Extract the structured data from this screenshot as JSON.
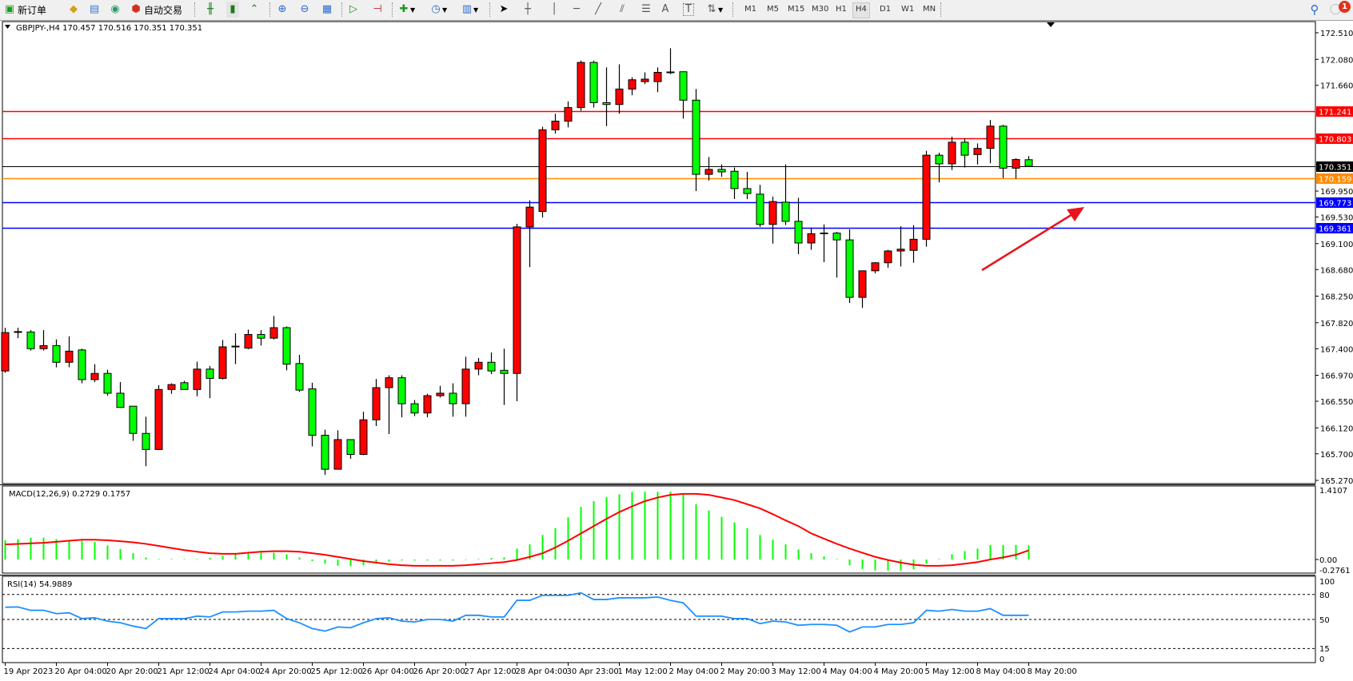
{
  "toolbar": {
    "new_order": "新订单",
    "auto_trading": "自动交易",
    "icons": [
      "new-order-icon",
      "metaeditor-icon",
      "terminal-icon",
      "signals-icon",
      "auto-trading-icon",
      "bar-chart-icon",
      "candlestick-icon",
      "line-chart-icon",
      "zoom-in-icon",
      "zoom-out-icon",
      "tile-windows-icon",
      "auto-scroll-icon",
      "chart-shift-icon",
      "indicators-icon",
      "periods-icon",
      "templates-icon",
      "cursor-icon",
      "crosshair-icon",
      "vertical-line-icon",
      "horizontal-line-icon",
      "trendline-icon",
      "equidistant-channel-icon",
      "fibonacci-icon",
      "text-icon",
      "text-label-icon",
      "arrows-icon",
      "search-icon",
      "notifications-icon"
    ],
    "text_tool": "A",
    "label_tool": "T",
    "timeframes": [
      "M1",
      "M5",
      "M15",
      "M30",
      "H1",
      "H4",
      "D1",
      "W1",
      "MN"
    ],
    "active_timeframe": "H4",
    "notification_count": "1"
  },
  "chart": {
    "header": "GBPJPY-,H4  170.457 170.516 170.351 170.351",
    "bull_color": "#ff0000",
    "bear_color": "#00ff00",
    "price_ticks": [
      "172.510",
      "172.080",
      "171.660",
      "169.950",
      "169.530",
      "169.100",
      "168.680",
      "168.250",
      "167.820",
      "167.400",
      "166.970",
      "166.550",
      "166.120",
      "165.700",
      "165.270"
    ],
    "lines": [
      {
        "price": "171.241",
        "color": "#ff0000"
      },
      {
        "price": "170.803",
        "color": "#ff0000"
      },
      {
        "price": "170.351",
        "color": "#000000"
      },
      {
        "price": "170.159",
        "color": "#ff8c00"
      },
      {
        "price": "169.773",
        "color": "#0000ff"
      },
      {
        "price": "169.361",
        "color": "#0000ff"
      }
    ],
    "arrow_color": "#e8141c",
    "candles": [
      [
        167.04,
        167.74,
        167.01,
        167.66
      ],
      [
        167.66,
        167.74,
        167.57,
        167.68
      ],
      [
        167.67,
        167.7,
        167.37,
        167.4
      ],
      [
        167.4,
        167.7,
        167.37,
        167.45
      ],
      [
        167.45,
        167.55,
        167.1,
        167.18
      ],
      [
        167.18,
        167.6,
        167.1,
        167.36
      ],
      [
        167.38,
        167.4,
        166.84,
        166.9
      ],
      [
        166.9,
        167.15,
        166.86,
        167.0
      ],
      [
        167.0,
        167.06,
        166.64,
        166.68
      ],
      [
        166.68,
        166.86,
        166.44,
        166.45
      ],
      [
        166.47,
        166.47,
        165.91,
        166.03
      ],
      [
        166.03,
        166.3,
        165.5,
        165.77
      ],
      [
        165.77,
        166.81,
        165.76,
        166.74
      ],
      [
        166.74,
        166.84,
        166.67,
        166.82
      ],
      [
        166.85,
        166.88,
        166.74,
        166.74
      ],
      [
        166.74,
        167.19,
        166.63,
        167.07
      ],
      [
        167.07,
        167.12,
        166.6,
        166.92
      ],
      [
        166.92,
        167.54,
        166.9,
        167.43
      ],
      [
        167.43,
        167.65,
        167.15,
        167.44
      ],
      [
        167.41,
        167.71,
        167.39,
        167.63
      ],
      [
        167.63,
        167.7,
        167.45,
        167.57
      ],
      [
        167.57,
        167.93,
        167.55,
        167.74
      ],
      [
        167.74,
        167.76,
        167.05,
        167.15
      ],
      [
        167.16,
        167.3,
        166.7,
        166.73
      ],
      [
        166.75,
        166.85,
        165.82,
        166.0
      ],
      [
        166.0,
        166.09,
        165.36,
        165.45
      ],
      [
        165.45,
        166.08,
        165.45,
        165.93
      ],
      [
        165.93,
        165.93,
        165.62,
        165.69
      ],
      [
        165.69,
        166.38,
        165.68,
        166.25
      ],
      [
        166.25,
        166.91,
        166.15,
        166.77
      ],
      [
        166.77,
        166.97,
        166.02,
        166.93
      ],
      [
        166.93,
        166.97,
        166.29,
        166.51
      ],
      [
        166.51,
        166.57,
        166.31,
        166.36
      ],
      [
        166.36,
        166.67,
        166.29,
        166.64
      ],
      [
        166.64,
        166.8,
        166.61,
        166.68
      ],
      [
        166.68,
        166.84,
        166.3,
        166.51
      ],
      [
        166.51,
        167.27,
        166.3,
        167.07
      ],
      [
        167.07,
        167.25,
        166.97,
        167.18
      ],
      [
        167.18,
        167.34,
        166.99,
        167.04
      ],
      [
        167.05,
        167.4,
        166.49,
        167.0
      ],
      [
        167.0,
        169.42,
        166.55,
        169.37
      ],
      [
        169.37,
        169.8,
        168.72,
        169.69
      ],
      [
        169.62,
        170.99,
        169.52,
        170.94
      ],
      [
        170.94,
        171.2,
        170.88,
        171.08
      ],
      [
        171.08,
        171.4,
        170.98,
        171.3
      ],
      [
        171.3,
        172.06,
        171.25,
        172.03
      ],
      [
        172.03,
        172.06,
        171.3,
        171.38
      ],
      [
        171.38,
        171.95,
        171.0,
        171.35
      ],
      [
        171.35,
        172.0,
        171.2,
        171.6
      ],
      [
        171.6,
        171.79,
        171.5,
        171.75
      ],
      [
        171.72,
        171.87,
        171.68,
        171.76
      ],
      [
        171.72,
        171.95,
        171.55,
        171.87
      ],
      [
        171.86,
        172.26,
        171.84,
        171.88
      ],
      [
        171.88,
        171.88,
        171.12,
        171.42
      ],
      [
        171.42,
        171.6,
        169.95,
        170.22
      ],
      [
        170.22,
        170.5,
        170.12,
        170.3
      ],
      [
        170.3,
        170.38,
        170.18,
        170.26
      ],
      [
        170.27,
        170.33,
        169.82,
        169.99
      ],
      [
        169.99,
        170.26,
        169.82,
        169.91
      ],
      [
        169.9,
        170.05,
        169.37,
        169.41
      ],
      [
        169.41,
        169.86,
        169.1,
        169.78
      ],
      [
        169.77,
        170.38,
        169.4,
        169.46
      ],
      [
        169.46,
        169.84,
        168.93,
        169.11
      ],
      [
        169.11,
        169.36,
        169.0,
        169.26
      ],
      [
        169.26,
        169.41,
        168.8,
        169.27
      ],
      [
        169.27,
        169.29,
        168.55,
        169.16
      ],
      [
        169.16,
        169.33,
        168.14,
        168.23
      ],
      [
        168.23,
        168.66,
        168.06,
        168.66
      ],
      [
        168.66,
        168.8,
        168.62,
        168.79
      ],
      [
        168.79,
        169.0,
        168.71,
        168.98
      ],
      [
        168.98,
        169.38,
        168.73,
        169.01
      ],
      [
        168.99,
        169.4,
        168.79,
        169.17
      ],
      [
        169.17,
        170.6,
        169.05,
        170.53
      ],
      [
        170.53,
        170.57,
        170.09,
        170.39
      ],
      [
        170.39,
        170.83,
        170.29,
        170.74
      ],
      [
        170.74,
        170.8,
        170.33,
        170.53
      ],
      [
        170.54,
        170.72,
        170.38,
        170.64
      ],
      [
        170.64,
        171.1,
        170.4,
        171.0
      ],
      [
        171.0,
        171.02,
        170.16,
        170.32
      ],
      [
        170.32,
        170.48,
        170.15,
        170.46
      ],
      [
        170.457,
        170.516,
        170.351,
        170.351
      ]
    ],
    "time_labels": [
      {
        "label": "19 Apr 2023",
        "bar": 0
      },
      {
        "label": "20 Apr 04:00",
        "bar": 4
      },
      {
        "label": "20 Apr 20:00",
        "bar": 8
      },
      {
        "label": "21 Apr 12:00",
        "bar": 12
      },
      {
        "label": "24 Apr 04:00",
        "bar": 16
      },
      {
        "label": "24 Apr 20:00",
        "bar": 20
      },
      {
        "label": "25 Apr 12:00",
        "bar": 24
      },
      {
        "label": "26 Apr 04:00",
        "bar": 28
      },
      {
        "label": "26 Apr 20:00",
        "bar": 32
      },
      {
        "label": "27 Apr 12:00",
        "bar": 36
      },
      {
        "label": "28 Apr 04:00",
        "bar": 40
      },
      {
        "label": "30 Apr 23:00",
        "bar": 44
      },
      {
        "label": "1 May 12:00",
        "bar": 48
      },
      {
        "label": "2 May 04:00",
        "bar": 52
      },
      {
        "label": "2 May 20:00",
        "bar": 56
      },
      {
        "label": "3 May 12:00",
        "bar": 60
      },
      {
        "label": "4 May 04:00",
        "bar": 64
      },
      {
        "label": "4 May 20:00",
        "bar": 68
      },
      {
        "label": "5 May 12:00",
        "bar": 72
      },
      {
        "label": "8 May 04:00",
        "bar": 76
      },
      {
        "label": "8 May 20:00",
        "bar": 80
      }
    ]
  },
  "macd": {
    "label": "MACD(12,26,9) 0.2729 0.1757",
    "axis_labels": [
      "1.4107",
      "0.00",
      "-0.2761"
    ],
    "hist_color": "#00ff00",
    "signal_color": "#ff0000",
    "histogram": [
      0.37,
      0.39,
      0.42,
      0.42,
      0.39,
      0.37,
      0.36,
      0.34,
      0.27,
      0.2,
      0.12,
      0.04,
      0.01,
      0.01,
      0.01,
      0.01,
      0.03,
      0.07,
      0.1,
      0.12,
      0.13,
      0.13,
      0.1,
      0.04,
      -0.03,
      -0.08,
      -0.12,
      -0.13,
      -0.11,
      -0.07,
      -0.04,
      -0.02,
      -0.02,
      -0.02,
      -0.02,
      -0.02,
      -0.01,
      0.01,
      0.03,
      0.04,
      0.21,
      0.29,
      0.47,
      0.6,
      0.81,
      1.01,
      1.12,
      1.2,
      1.25,
      1.3,
      1.3,
      1.3,
      1.3,
      1.25,
      1.06,
      0.94,
      0.82,
      0.71,
      0.6,
      0.47,
      0.38,
      0.29,
      0.19,
      0.12,
      0.06,
      0.01,
      -0.11,
      -0.18,
      -0.21,
      -0.21,
      -0.21,
      -0.19,
      -0.08,
      0.01,
      0.1,
      0.16,
      0.21,
      0.28,
      0.28,
      0.28,
      0.2729
    ],
    "signal": [
      0.29,
      0.3,
      0.31,
      0.32,
      0.34,
      0.36,
      0.38,
      0.38,
      0.37,
      0.35,
      0.33,
      0.3,
      0.26,
      0.22,
      0.18,
      0.15,
      0.12,
      0.11,
      0.11,
      0.13,
      0.15,
      0.16,
      0.16,
      0.15,
      0.12,
      0.09,
      0.05,
      0.01,
      -0.03,
      -0.06,
      -0.09,
      -0.11,
      -0.12,
      -0.12,
      -0.12,
      -0.12,
      -0.11,
      -0.09,
      -0.07,
      -0.05,
      -0.01,
      0.05,
      0.12,
      0.23,
      0.36,
      0.5,
      0.64,
      0.78,
      0.91,
      1.02,
      1.12,
      1.19,
      1.24,
      1.26,
      1.26,
      1.24,
      1.19,
      1.14,
      1.06,
      0.98,
      0.87,
      0.75,
      0.64,
      0.5,
      0.4,
      0.3,
      0.21,
      0.13,
      0.05,
      -0.01,
      -0.06,
      -0.1,
      -0.12,
      -0.12,
      -0.11,
      -0.08,
      -0.05,
      0.0,
      0.04,
      0.09,
      0.1757
    ]
  },
  "rsi": {
    "label": "RSI(14) 54.9889",
    "axis_labels": [
      "100",
      "80",
      "50",
      "15",
      "0"
    ],
    "levels": [
      80,
      50,
      15
    ],
    "line_color": "#1e90ff",
    "values": [
      64.7,
      65,
      61,
      61,
      57,
      58,
      51,
      52,
      48,
      46,
      42,
      39,
      51,
      51,
      51,
      54,
      53,
      59,
      59,
      60,
      60,
      61,
      51,
      46,
      39,
      36,
      41,
      40,
      46,
      51,
      52,
      48,
      47,
      50,
      50,
      48,
      55,
      55,
      53,
      53,
      73,
      73,
      79,
      79,
      79,
      82,
      74,
      74,
      76,
      76,
      76,
      77,
      73,
      70,
      54,
      54,
      54,
      51,
      51,
      45,
      48,
      47,
      43,
      44,
      44,
      43,
      35,
      41,
      41,
      44,
      44,
      46,
      61,
      60,
      62,
      60,
      60,
      63,
      55,
      55,
      54.9889
    ]
  }
}
